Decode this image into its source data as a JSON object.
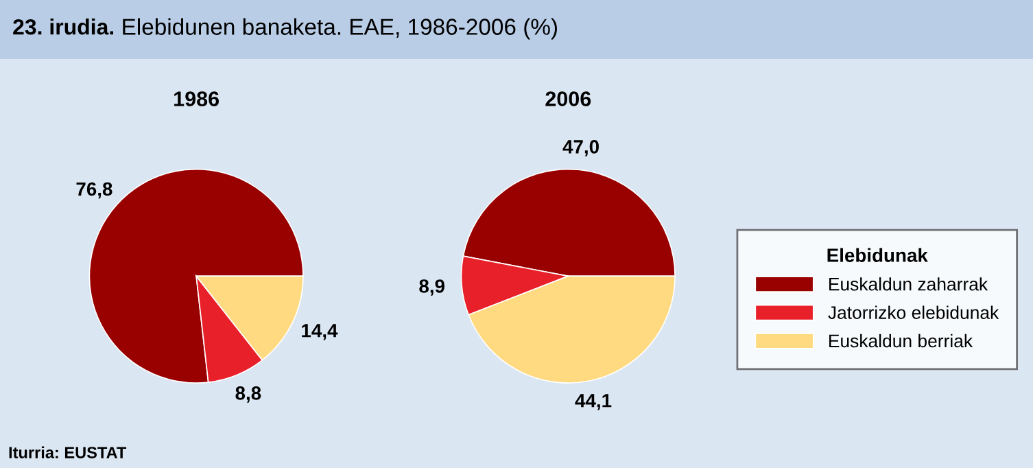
{
  "chart_data": [
    {
      "type": "pie",
      "title": "1986",
      "categories": [
        "Euskaldun zaharrak",
        "Jatorrizko elebidunak",
        "Euskaldun berriak"
      ],
      "values": [
        76.8,
        8.8,
        14.4
      ],
      "value_labels": [
        "76,8",
        "8,8",
        "14,4"
      ],
      "colors": [
        "#990000",
        "#e8202a",
        "#ffda80"
      ],
      "legend": "right",
      "legend_title": "Elebidunak",
      "annotations": [
        "23. irudia.",
        "Elebidunen banaketa. EAE, 1986-2006 (%)",
        "Iturria: EUSTAT"
      ]
    },
    {
      "type": "pie",
      "title": "2006",
      "categories": [
        null,
        null,
        null
      ],
      "values": [
        47.0,
        8.9,
        44.1
      ],
      "value_labels": [
        "47,0",
        "8,9",
        "44,1"
      ],
      "colors": [
        "#990000",
        "#e8202a",
        "#ffda80"
      ]
    }
  ]
}
